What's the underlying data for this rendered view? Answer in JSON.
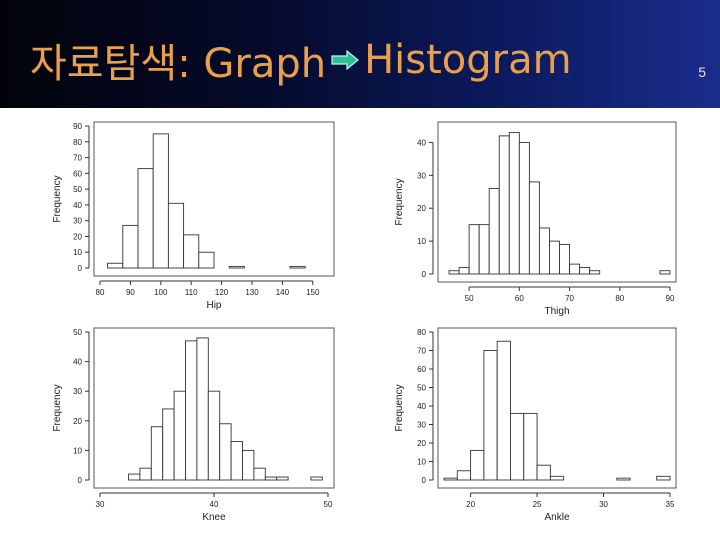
{
  "slide": {
    "title_prefix": "자료탐색: Graph",
    "title_suffix": "Histogram",
    "page_number": "5"
  },
  "colors": {
    "title": "#e9a04a",
    "arrow_fill": "#2fbf9a",
    "header_dark": "#02030a",
    "header_light": "#1b2d8c"
  },
  "icons": {
    "title_arrow": "right-arrow-icon"
  },
  "chart_data": [
    {
      "type": "bar",
      "xlabel": "Hip",
      "ylabel": "Frequency",
      "bin_start": 82.5,
      "bin_width": 5,
      "values": [
        3,
        27,
        63,
        85,
        41,
        21,
        10,
        0,
        1,
        0,
        0,
        0,
        1
      ],
      "xlim": [
        80,
        155
      ],
      "ylim": [
        0,
        90
      ],
      "xticks": [
        80,
        90,
        100,
        110,
        120,
        130,
        140,
        150
      ],
      "yticks": [
        0,
        10,
        20,
        30,
        40,
        50,
        60,
        70,
        80,
        90
      ]
    },
    {
      "type": "bar",
      "xlabel": "Thigh",
      "ylabel": "Frequency",
      "bin_start": 46,
      "bin_width": 2,
      "values": [
        1,
        2,
        15,
        15,
        26,
        42,
        43,
        40,
        28,
        14,
        10,
        9,
        3,
        2,
        1,
        0,
        0,
        0,
        0,
        0,
        0,
        1
      ],
      "xlim": [
        45,
        90
      ],
      "ylim": [
        0,
        45
      ],
      "xticks": [
        50,
        60,
        70,
        80,
        90
      ],
      "yticks": [
        0,
        10,
        20,
        30,
        40
      ]
    },
    {
      "type": "bar",
      "xlabel": "Knee",
      "ylabel": "Frequency",
      "bin_start": 32.5,
      "bin_width": 1,
      "values": [
        2,
        4,
        18,
        24,
        30,
        47,
        48,
        30,
        19,
        13,
        10,
        4,
        1,
        1,
        0,
        0,
        1
      ],
      "xlim": [
        30,
        50
      ],
      "ylim": [
        0,
        50
      ],
      "xticks": [
        30,
        40,
        50
      ],
      "yticks": [
        0,
        10,
        20,
        30,
        40,
        50
      ]
    },
    {
      "type": "bar",
      "xlabel": "Ankle",
      "ylabel": "Frequency",
      "bin_start": 18,
      "bin_width": 1,
      "values": [
        1,
        5,
        16,
        70,
        75,
        36,
        36,
        8,
        2,
        0,
        0,
        0,
        0,
        1,
        0,
        0,
        2
      ],
      "xlim": [
        18,
        35
      ],
      "ylim": [
        0,
        80
      ],
      "xticks": [
        20,
        25,
        30,
        35
      ],
      "yticks": [
        0,
        10,
        20,
        30,
        40,
        50,
        60,
        70,
        80
      ]
    }
  ]
}
